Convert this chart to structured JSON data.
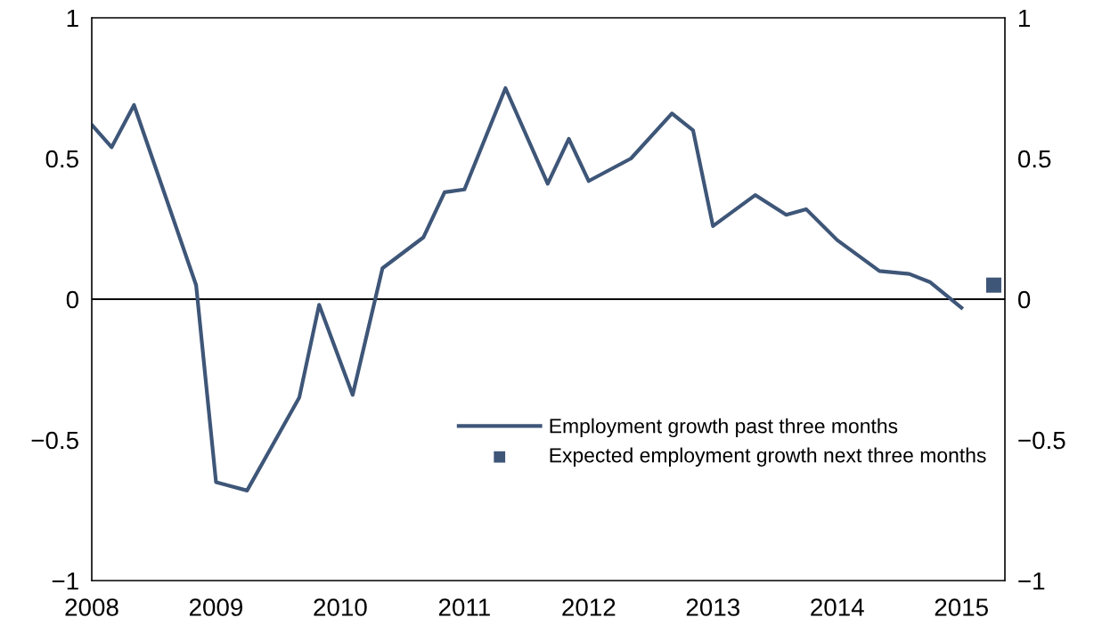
{
  "chart_data": {
    "type": "line",
    "xlim": [
      2008,
      2015.35
    ],
    "xticks": [
      2008,
      2009,
      2010,
      2011,
      2012,
      2013,
      2014,
      2015
    ],
    "ylim": [
      -1,
      1
    ],
    "yticks": [
      {
        "value": -1,
        "label": "−1"
      },
      {
        "value": -0.5,
        "label": "−0.5"
      },
      0,
      0.5,
      1
    ],
    "y2lim": [
      -1,
      1
    ],
    "y2ticks": [
      {
        "value": -1,
        "label": "−1"
      },
      {
        "value": -0.5,
        "label": "−0.5"
      },
      0,
      0.5,
      1
    ],
    "ref_lines": [
      {
        "axis": "y",
        "value": 0,
        "label": null,
        "color": "#000000",
        "line_style": "solid"
      }
    ],
    "legend": "bottom right",
    "grid": false,
    "series": [
      {
        "name": "Employment growth past three months",
        "color": "#3e5678",
        "marker": "none",
        "line_style": "solid",
        "x": [
          2008.0,
          2008.16,
          2008.34,
          2008.84,
          2009.0,
          2009.25,
          2009.67,
          2009.83,
          2010.1,
          2010.34,
          2010.67,
          2010.84,
          2011.0,
          2011.33,
          2011.67,
          2011.84,
          2012.0,
          2012.34,
          2012.67,
          2012.84,
          2013.0,
          2013.34,
          2013.59,
          2013.75,
          2014.0,
          2014.34,
          2014.58,
          2014.75,
          2015.0
        ],
        "values": [
          0.62,
          0.54,
          0.69,
          0.05,
          -0.65,
          -0.68,
          -0.35,
          -0.02,
          -0.34,
          0.11,
          0.22,
          0.38,
          0.39,
          0.75,
          0.41,
          0.57,
          0.42,
          0.5,
          0.66,
          0.6,
          0.26,
          0.37,
          0.3,
          0.32,
          0.21,
          0.1,
          0.09,
          0.06,
          -0.03
        ]
      },
      {
        "name": "Expected employment growth next three months",
        "type": "scatter",
        "color": "#3e5678",
        "marker": "square",
        "x": [
          2015.26
        ],
        "values": [
          0.05
        ]
      }
    ]
  }
}
